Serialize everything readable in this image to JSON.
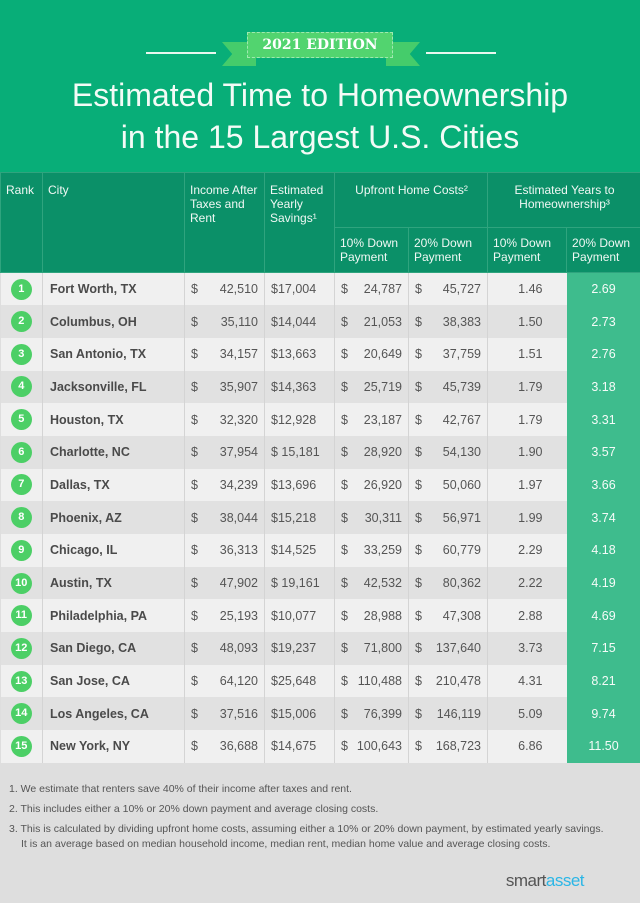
{
  "header": {
    "edition": "2021 EDITION",
    "title_line1": "Estimated Time to Homeownership",
    "title_line2": "in the 15 Largest U.S. Cities"
  },
  "columns": {
    "rank": "Rank",
    "city": "City",
    "income": "Income After Taxes and Rent",
    "savings": "Estimated Yearly Savings¹",
    "upfront": "Upfront Home Costs²",
    "years": "Estimated Years to Homeownership³",
    "down10": "10% Down Payment",
    "down20": "20% Down Payment"
  },
  "rows": [
    {
      "rank": "1",
      "city": "Fort Worth, TX",
      "income": "42,510",
      "savings": "$17,004",
      "up10": "24,787",
      "up20": "45,727",
      "y10": "1.46",
      "y20": "2.69"
    },
    {
      "rank": "2",
      "city": "Columbus, OH",
      "income": "35,110",
      "savings": "$14,044",
      "up10": "21,053",
      "up20": "38,383",
      "y10": "1.50",
      "y20": "2.73"
    },
    {
      "rank": "3",
      "city": "San Antonio, TX",
      "income": "34,157",
      "savings": "$13,663",
      "up10": "20,649",
      "up20": "37,759",
      "y10": "1.51",
      "y20": "2.76"
    },
    {
      "rank": "4",
      "city": "Jacksonville, FL",
      "income": "35,907",
      "savings": "$14,363",
      "up10": "25,719",
      "up20": "45,739",
      "y10": "1.79",
      "y20": "3.18"
    },
    {
      "rank": "5",
      "city": "Houston, TX",
      "income": "32,320",
      "savings": "$12,928",
      "up10": "23,187",
      "up20": "42,767",
      "y10": "1.79",
      "y20": "3.31"
    },
    {
      "rank": "6",
      "city": "Charlotte, NC",
      "income": "37,954",
      "savings": "$ 15,181",
      "up10": "28,920",
      "up20": "54,130",
      "y10": "1.90",
      "y20": "3.57"
    },
    {
      "rank": "7",
      "city": "Dallas, TX",
      "income": "34,239",
      "savings": "$13,696",
      "up10": "26,920",
      "up20": "50,060",
      "y10": "1.97",
      "y20": "3.66"
    },
    {
      "rank": "8",
      "city": "Phoenix, AZ",
      "income": "38,044",
      "savings": "$15,218",
      "up10": "30,311",
      "up20": "56,971",
      "y10": "1.99",
      "y20": "3.74"
    },
    {
      "rank": "9",
      "city": "Chicago, IL",
      "income": "36,313",
      "savings": "$14,525",
      "up10": "33,259",
      "up20": "60,779",
      "y10": "2.29",
      "y20": "4.18"
    },
    {
      "rank": "10",
      "city": "Austin, TX",
      "income": "47,902",
      "savings": "$ 19,161",
      "up10": "42,532",
      "up20": "80,362",
      "y10": "2.22",
      "y20": "4.19"
    },
    {
      "rank": "11",
      "city": "Philadelphia, PA",
      "income": "25,193",
      "savings": "$10,077",
      "up10": "28,988",
      "up20": "47,308",
      "y10": "2.88",
      "y20": "4.69"
    },
    {
      "rank": "12",
      "city": "San Diego, CA",
      "income": "48,093",
      "savings": "$19,237",
      "up10": "71,800",
      "up20": "137,640",
      "y10": "3.73",
      "y20": "7.15"
    },
    {
      "rank": "13",
      "city": "San Jose, CA",
      "income": "64,120",
      "savings": "$25,648",
      "up10": "110,488",
      "up20": "210,478",
      "y10": "4.31",
      "y20": "8.21"
    },
    {
      "rank": "14",
      "city": "Los Angeles, CA",
      "income": "37,516",
      "savings": "$15,006",
      "up10": "76,399",
      "up20": "146,119",
      "y10": "5.09",
      "y20": "9.74"
    },
    {
      "rank": "15",
      "city": "New York, NY",
      "income": "36,688",
      "savings": "$14,675",
      "up10": "100,643",
      "up20": "168,723",
      "y10": "6.86",
      "y20": "11.50"
    }
  ],
  "currency": "$",
  "notes": [
    "1. We estimate that renters save 40% of their income after taxes and rent.",
    "2. This includes either a 10% or 20% down payment and average closing costs.",
    "3. This is calculated by dividing upfront home costs, assuming either a 10% or 20% down payment, by estimated yearly savings. It is an average based on median household income, median rent, median home value and average closing costs."
  ],
  "logo": {
    "part1": "smart",
    "part2": "asset"
  },
  "colors": {
    "banner": "#08ae78",
    "header": "#0b9068",
    "highlight": "#3ebc8d",
    "badge": "#4ccf66"
  }
}
